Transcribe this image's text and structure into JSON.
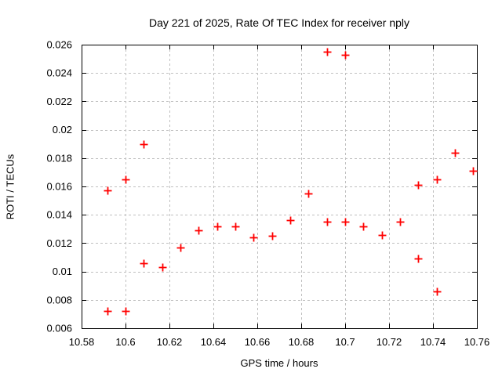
{
  "chart_data": {
    "type": "scatter",
    "title": "Day 221 of 2025, Rate Of TEC Index for receiver nply",
    "xlabel": "GPS time / hours",
    "ylabel": "ROTI / TECUs",
    "xlim": [
      10.58,
      10.76
    ],
    "ylim": [
      0.006,
      0.026
    ],
    "xticks": [
      10.58,
      10.6,
      10.62,
      10.64,
      10.66,
      10.68,
      10.7,
      10.72,
      10.74,
      10.76
    ],
    "xtick_labels": [
      "10.58",
      "10.6",
      "10.62",
      "10.64",
      "10.66",
      "10.68",
      "10.7",
      "10.72",
      "10.74",
      "10.76"
    ],
    "yticks": [
      0.006,
      0.008,
      0.01,
      0.012,
      0.014,
      0.016,
      0.018,
      0.02,
      0.022,
      0.024,
      0.026
    ],
    "ytick_labels": [
      "0.006",
      "0.008",
      "0.01",
      "0.012",
      "0.014",
      "0.016",
      "0.018",
      "0.02",
      "0.022",
      "0.024",
      "0.026"
    ],
    "grid": true,
    "legend": "none",
    "marker": "plus",
    "marker_color": "#ff0000",
    "grid_color": "#c0c0c0",
    "border_color": "#000000",
    "background_color": "#ffffff",
    "points": [
      [
        10.5917,
        0.0157
      ],
      [
        10.5917,
        0.0072
      ],
      [
        10.6,
        0.0165
      ],
      [
        10.6,
        0.0072
      ],
      [
        10.6083,
        0.019
      ],
      [
        10.6083,
        0.0106
      ],
      [
        10.6167,
        0.0103
      ],
      [
        10.625,
        0.0117
      ],
      [
        10.6333,
        0.0129
      ],
      [
        10.6417,
        0.0132
      ],
      [
        10.65,
        0.0132
      ],
      [
        10.6583,
        0.0124
      ],
      [
        10.6667,
        0.0125
      ],
      [
        10.675,
        0.0136
      ],
      [
        10.6833,
        0.0155
      ],
      [
        10.6917,
        0.0255
      ],
      [
        10.6917,
        0.0135
      ],
      [
        10.7,
        0.0253
      ],
      [
        10.7,
        0.0135
      ],
      [
        10.7083,
        0.0132
      ],
      [
        10.7167,
        0.0126
      ],
      [
        10.725,
        0.0135
      ],
      [
        10.7333,
        0.0161
      ],
      [
        10.7333,
        0.0109
      ],
      [
        10.7417,
        0.0165
      ],
      [
        10.7417,
        0.0086
      ],
      [
        10.75,
        0.0184
      ],
      [
        10.7583,
        0.0171
      ]
    ]
  }
}
